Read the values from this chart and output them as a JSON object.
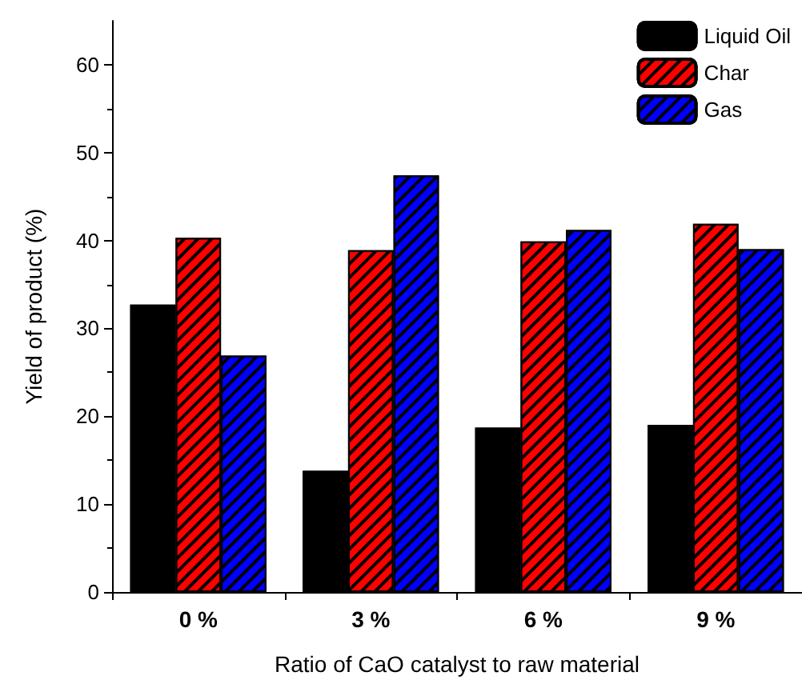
{
  "chart_data": {
    "type": "bar",
    "xlabel": "Ratio of CaO catalyst to raw material",
    "ylabel": "Yield of product (%)",
    "categories": [
      "0 %",
      "3 %",
      "6 %",
      "9 %"
    ],
    "series": [
      {
        "name": "Liquid Oil",
        "color": "#000000",
        "values": [
          32.7,
          13.8,
          18.7,
          19.0
        ]
      },
      {
        "name": "Char",
        "color": "#ff0000",
        "values": [
          40.3,
          38.9,
          39.9,
          41.9
        ]
      },
      {
        "name": "Gas",
        "color": "#0000ff",
        "values": [
          26.9,
          47.4,
          41.2,
          39.0
        ]
      }
    ],
    "ylim": [
      0,
      65
    ],
    "yticks": [
      0,
      10,
      20,
      30,
      40,
      50,
      60
    ],
    "grid": false,
    "legend": "top right"
  }
}
